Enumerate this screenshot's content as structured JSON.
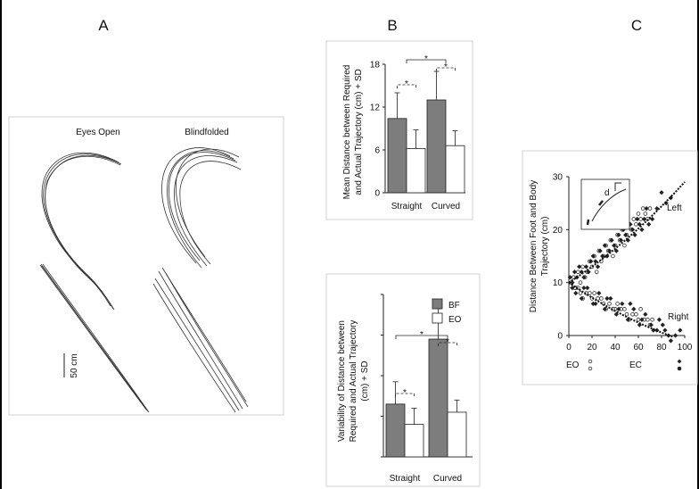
{
  "figure": {
    "panels": {
      "A": {
        "letter": "A",
        "label_eyes_open": "Eyes Open",
        "label_blindfolded": "Blindfolded",
        "scale_bar_label": "50 cm"
      },
      "B": {
        "letter": "B",
        "top_chart": {
          "ylabel_line1": "Mean Distance between Required",
          "ylabel_line2": "and Actual Trajectory (cm) + SD",
          "yticks": [
            "0",
            "6",
            "12",
            "18"
          ],
          "categories": [
            "Straight",
            "Curved"
          ],
          "star": "*"
        },
        "bottom_chart": {
          "ylabel_line1": "Variability of Distance between",
          "ylabel_line2": "Required and Actual Trajectory",
          "ylabel_line3": "(cm) + SD",
          "categories": [
            "Straight",
            "Curved"
          ],
          "legend": [
            {
              "label": "BF",
              "color": "#7d7d7d"
            },
            {
              "label": "EO",
              "color": "#ffffff"
            }
          ],
          "star": "*"
        }
      },
      "C": {
        "letter": "C",
        "ylabel_line1": "Distance Between Foot and Body",
        "ylabel_line2": "Trajectory (cm)",
        "yticks": [
          "0",
          "10",
          "20",
          "30"
        ],
        "xticks": [
          "0",
          "20",
          "40",
          "60",
          "80",
          "100"
        ],
        "label_left": "Left",
        "label_right": "Right",
        "inset_letter": "d",
        "legend_eo": "EO",
        "legend_ec": "EC"
      }
    }
  },
  "chart_data": [
    {
      "type": "bar",
      "categories": [
        "Straight",
        "Curved"
      ],
      "ylim": [
        0,
        18
      ],
      "series": [
        {
          "values": [
            10.4,
            13.0
          ],
          "errors": [
            3.6,
            4.0
          ],
          "color": "#7d7d7d"
        },
        {
          "values": [
            6.2,
            6.6
          ],
          "errors": [
            2.6,
            2.1
          ],
          "color": "#ffffff"
        }
      ]
    },
    {
      "type": "bar",
      "categories": [
        "Straight",
        "Curved"
      ],
      "series": [
        {
          "name": "BF",
          "values": [
            2.6,
            5.8
          ],
          "errors": [
            1.1,
            1.5
          ],
          "color": "#7d7d7d"
        },
        {
          "name": "EO",
          "values": [
            1.6,
            2.2
          ],
          "errors": [
            0.8,
            0.6
          ],
          "color": "#ffffff"
        }
      ]
    },
    {
      "type": "scatter",
      "xlim": [
        0,
        100
      ],
      "ylim": [
        0,
        30
      ],
      "series": [
        {
          "marker": "open",
          "points": [
            [
              2,
              10
            ],
            [
              4,
              11
            ],
            [
              6,
              9
            ],
            [
              8,
              12
            ],
            [
              10,
              10
            ],
            [
              12,
              13
            ],
            [
              14,
              11
            ],
            [
              16,
              12
            ],
            [
              18,
              14
            ],
            [
              20,
              13
            ],
            [
              22,
              15
            ],
            [
              24,
              12
            ],
            [
              26,
              16
            ],
            [
              28,
              14
            ],
            [
              30,
              15
            ],
            [
              32,
              17
            ],
            [
              34,
              16
            ],
            [
              36,
              18
            ],
            [
              38,
              15
            ],
            [
              40,
              17
            ],
            [
              42,
              19
            ],
            [
              44,
              18
            ],
            [
              46,
              20
            ],
            [
              48,
              17
            ],
            [
              50,
              19
            ],
            [
              52,
              21
            ],
            [
              54,
              20
            ],
            [
              56,
              22
            ],
            [
              58,
              21
            ],
            [
              60,
              23
            ],
            [
              62,
              22
            ],
            [
              64,
              24
            ],
            [
              66,
              23
            ],
            [
              68,
              22
            ],
            [
              70,
              24
            ],
            [
              5,
              9
            ],
            [
              10,
              8
            ],
            [
              15,
              8
            ],
            [
              20,
              7
            ],
            [
              25,
              7
            ],
            [
              30,
              6
            ],
            [
              35,
              6
            ],
            [
              40,
              5
            ],
            [
              45,
              5
            ],
            [
              50,
              4
            ],
            [
              55,
              4
            ],
            [
              60,
              3
            ],
            [
              65,
              3
            ],
            [
              70,
              2
            ],
            [
              8,
              9
            ],
            [
              18,
              8
            ],
            [
              28,
              7
            ],
            [
              38,
              5
            ],
            [
              48,
              5
            ],
            [
              58,
              4
            ],
            [
              68,
              3
            ],
            [
              12,
              7
            ],
            [
              22,
              8
            ],
            [
              32,
              5
            ],
            [
              42,
              6
            ],
            [
              52,
              3
            ],
            [
              62,
              5
            ],
            [
              72,
              3
            ]
          ]
        },
        {
          "marker": "filled",
          "points": [
            [
              1,
              11
            ],
            [
              3,
              10
            ],
            [
              5,
              12
            ],
            [
              7,
              11
            ],
            [
              9,
              13
            ],
            [
              11,
              12
            ],
            [
              13,
              11
            ],
            [
              15,
              13
            ],
            [
              17,
              12
            ],
            [
              19,
              14
            ],
            [
              21,
              15
            ],
            [
              23,
              14
            ],
            [
              25,
              13
            ],
            [
              27,
              16
            ],
            [
              29,
              15
            ],
            [
              31,
              17
            ],
            [
              33,
              15
            ],
            [
              35,
              16
            ],
            [
              37,
              18
            ],
            [
              39,
              17
            ],
            [
              41,
              16
            ],
            [
              43,
              19
            ],
            [
              45,
              18
            ],
            [
              47,
              20
            ],
            [
              49,
              19
            ],
            [
              51,
              18
            ],
            [
              53,
              21
            ],
            [
              55,
              20
            ],
            [
              57,
              19
            ],
            [
              59,
              22
            ],
            [
              61,
              21
            ],
            [
              63,
              20
            ],
            [
              65,
              22
            ],
            [
              67,
              24
            ],
            [
              69,
              21
            ],
            [
              72,
              22
            ],
            [
              76,
              24
            ],
            [
              80,
              27
            ],
            [
              84,
              25
            ],
            [
              88,
              26
            ],
            [
              6,
              8
            ],
            [
              11,
              7
            ],
            [
              16,
              9
            ],
            [
              21,
              6
            ],
            [
              26,
              8
            ],
            [
              31,
              5
            ],
            [
              36,
              7
            ],
            [
              41,
              4
            ],
            [
              46,
              6
            ],
            [
              51,
              3
            ],
            [
              56,
              5
            ],
            [
              61,
              2
            ],
            [
              66,
              4
            ],
            [
              71,
              2
            ],
            [
              76,
              1
            ],
            [
              81,
              2
            ],
            [
              86,
              0
            ],
            [
              3,
              9
            ],
            [
              13,
              9
            ],
            [
              23,
              6
            ],
            [
              33,
              7
            ],
            [
              43,
              5
            ],
            [
              53,
              6
            ],
            [
              63,
              3
            ],
            [
              73,
              1
            ],
            [
              78,
              3
            ],
            [
              83,
              1
            ],
            [
              88,
              -1
            ],
            [
              92,
              0
            ],
            [
              96,
              1
            ]
          ]
        }
      ]
    }
  ]
}
